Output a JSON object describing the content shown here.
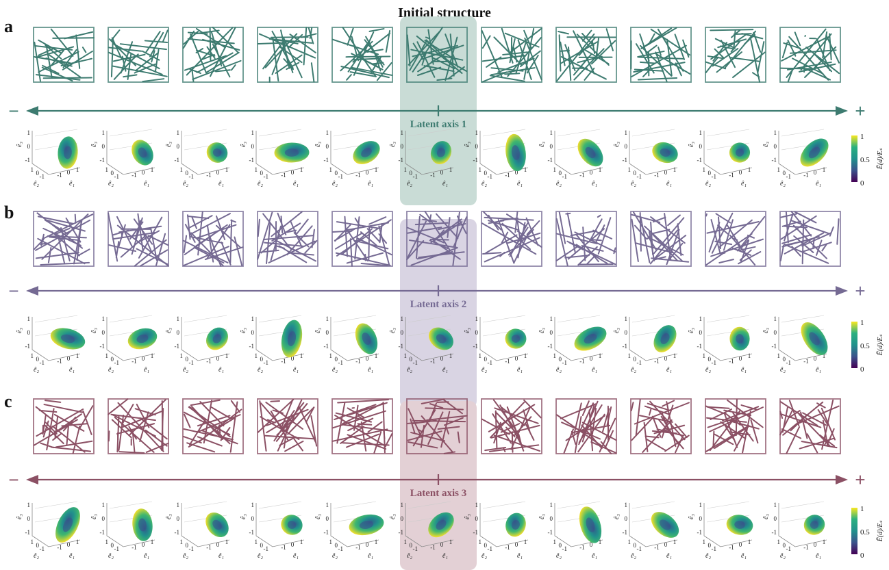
{
  "figure": {
    "title": "Initial structure",
    "panels": [
      {
        "label": "a",
        "axis_label": "Latent axis 1",
        "minus": "−",
        "plus": "+",
        "color": "#3d7b70",
        "highlight": "#c9dcd6"
      },
      {
        "label": "b",
        "axis_label": "Latent axis 2",
        "minus": "−",
        "plus": "+",
        "color": "#756a93",
        "highlight": "#d9d4e3"
      },
      {
        "label": "c",
        "axis_label": "Latent axis 3",
        "minus": "−",
        "plus": "+",
        "color": "#8b5064",
        "highlight": "#e3d0d5"
      }
    ],
    "colorbar": {
      "ticks": [
        "1",
        "0.5",
        "0"
      ],
      "label": "Ē(d)/Eₛ",
      "colors": [
        "#f9e721",
        "#2ab07f",
        "#21918c",
        "#3b528b",
        "#440154"
      ]
    },
    "axes": {
      "e1": "ê₁",
      "e2": "ê₂",
      "e3": "ê₃",
      "z_ticks": [
        "1",
        "0",
        "-1"
      ],
      "x_ticks": [
        "-1",
        "0",
        "1"
      ],
      "y_ticks": [
        "1",
        "0",
        "-1"
      ]
    },
    "samples_per_axis": 11
  }
}
